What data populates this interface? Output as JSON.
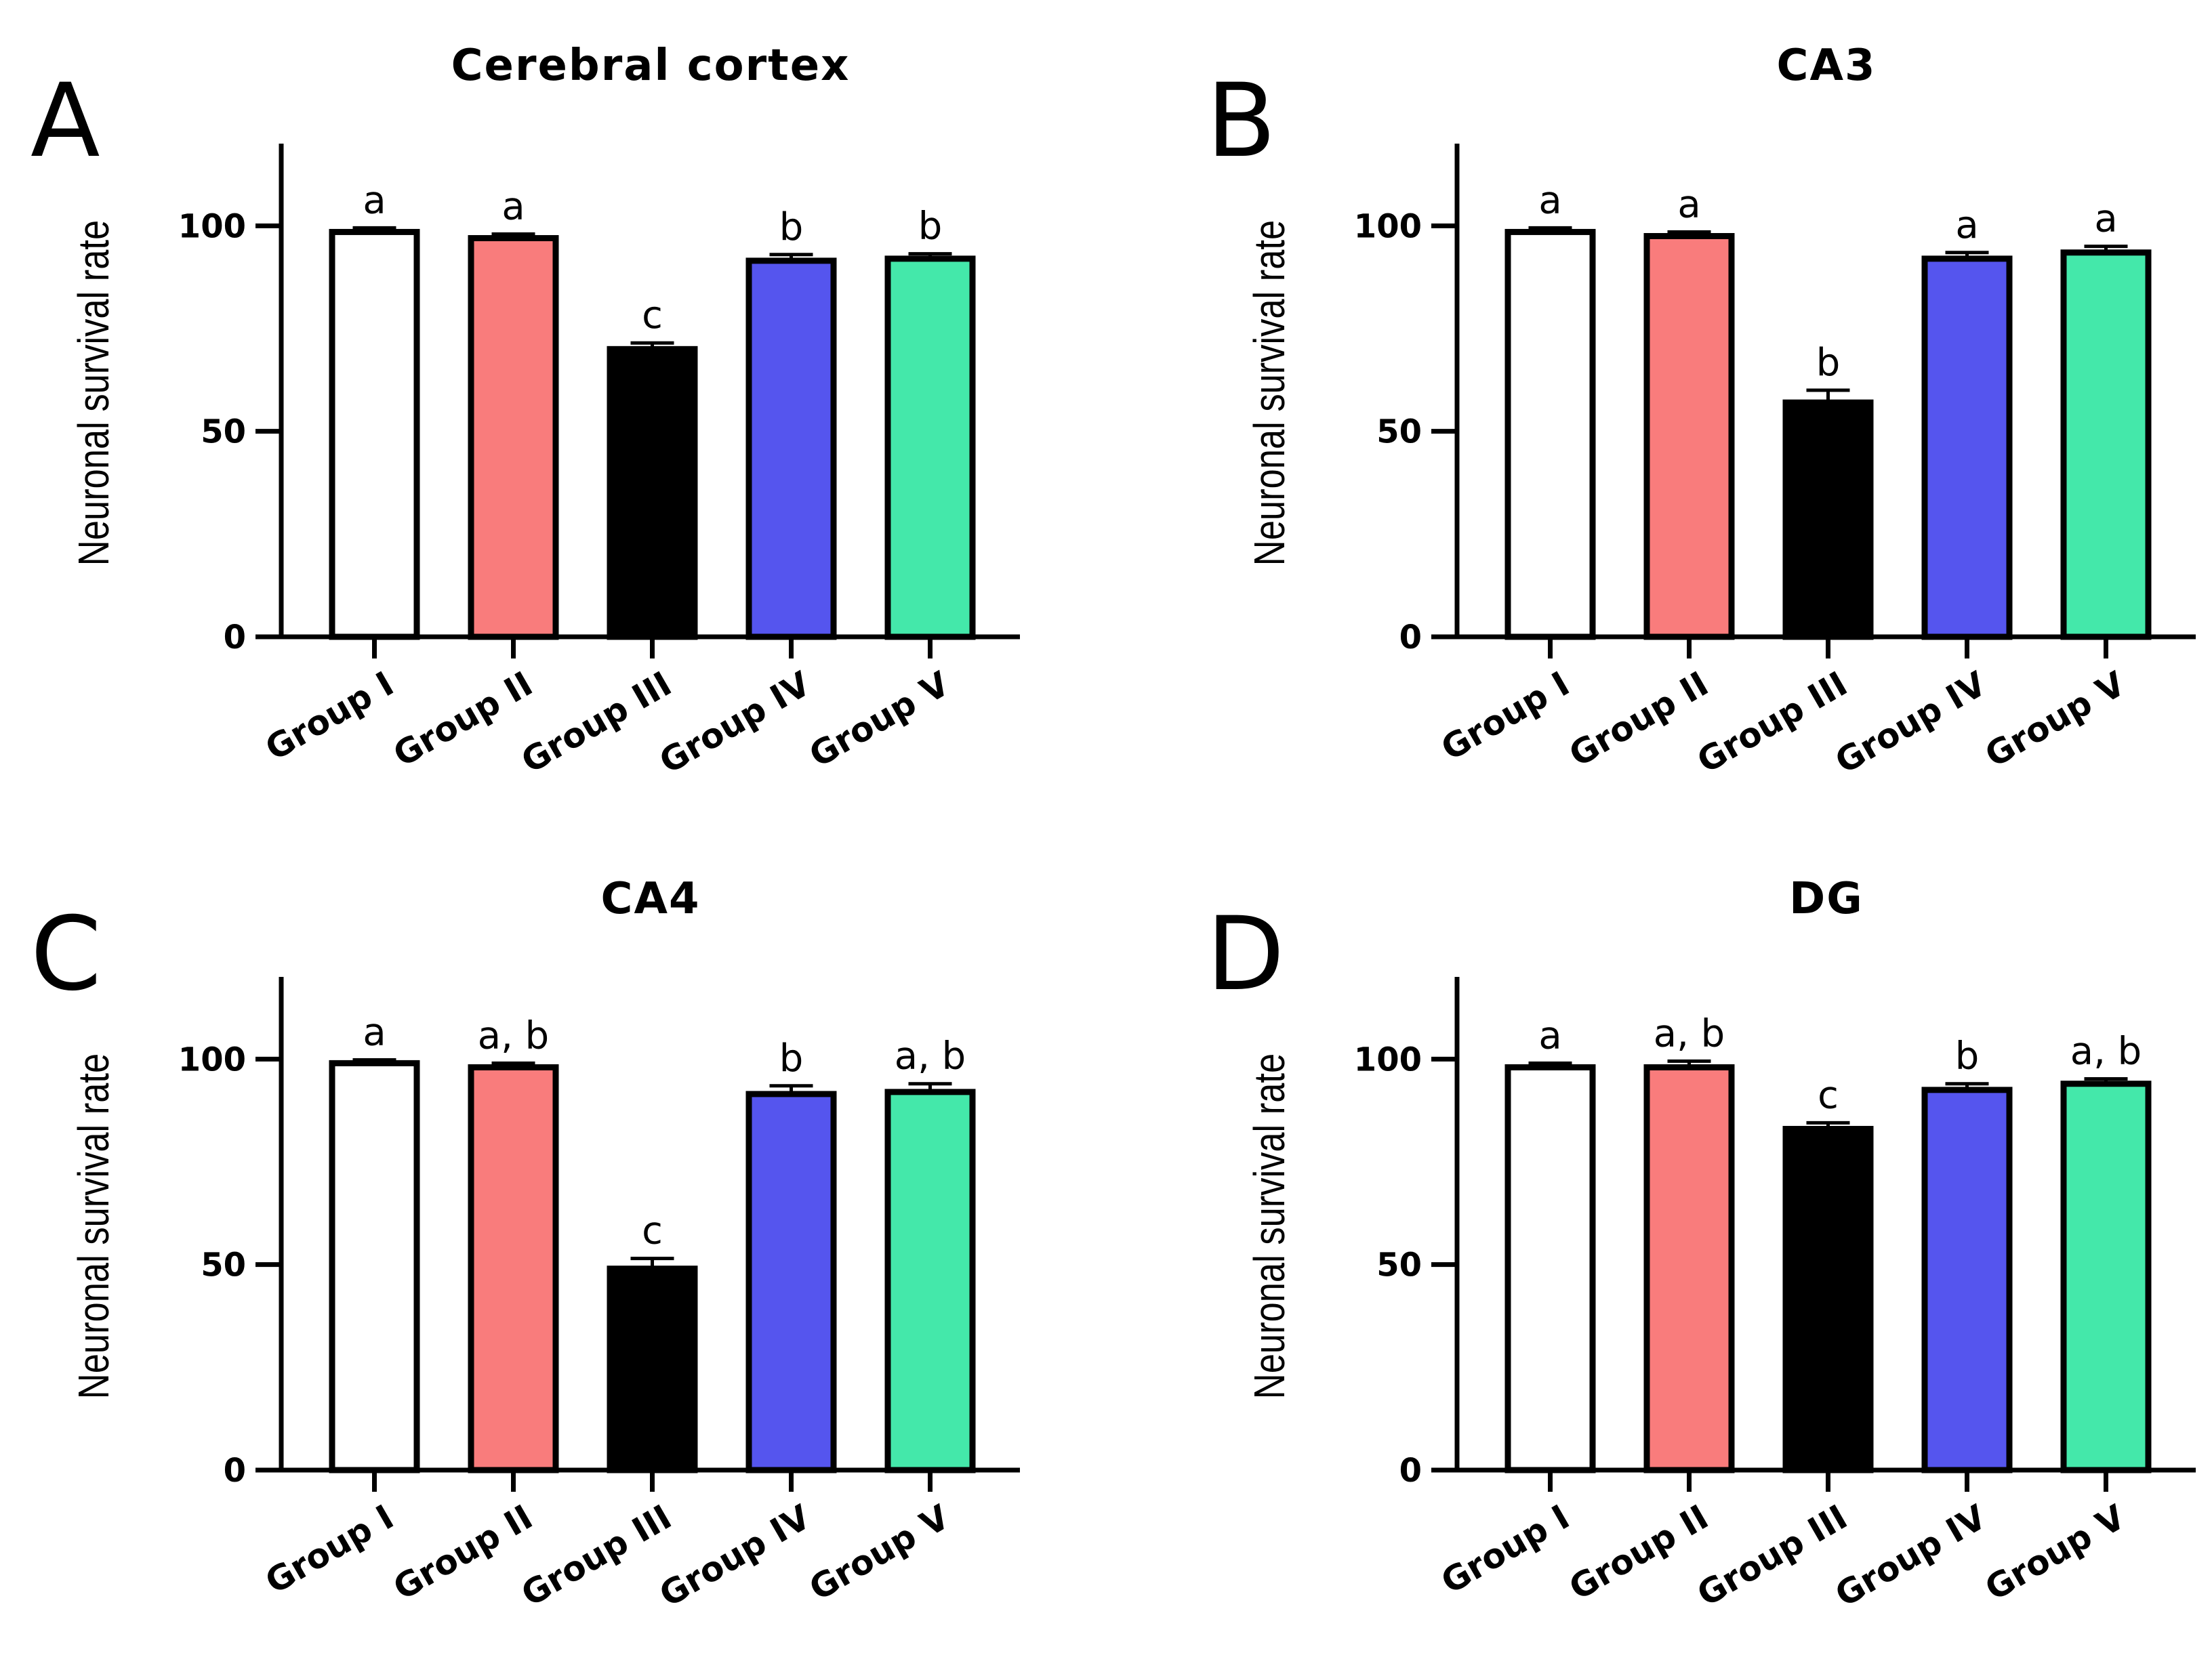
{
  "chart_data": [
    {
      "panel": "A",
      "type": "bar",
      "title": "Cerebral cortex",
      "ylabel": "Neuronal survival rate",
      "xlabel": "",
      "ylim": [
        0,
        120
      ],
      "yticks": [
        0,
        50,
        100
      ],
      "categories": [
        "Group I",
        "Group II",
        "Group III",
        "Group IV",
        "Group V"
      ],
      "values": [
        98.5,
        97,
        70,
        91.5,
        92
      ],
      "errors": [
        1,
        1,
        1.5,
        1.5,
        1.2
      ],
      "annotations": [
        "a",
        "a",
        "c",
        "b",
        "b"
      ],
      "colors": [
        "#ffffff",
        "#f97c7c",
        "#000000",
        "#5555ee",
        "#44e8aa"
      ],
      "grid": false
    },
    {
      "panel": "B",
      "type": "bar",
      "title": "CA3",
      "ylabel": "Neuronal survival rate",
      "xlabel": "",
      "ylim": [
        0,
        120
      ],
      "yticks": [
        0,
        50,
        100
      ],
      "categories": [
        "Group I",
        "Group II",
        "Group III",
        "Group IV",
        "Group V"
      ],
      "values": [
        98.5,
        97.5,
        57,
        92,
        93.5
      ],
      "errors": [
        1,
        1,
        3,
        1.5,
        1.5
      ],
      "annotations": [
        "a",
        "a",
        "b",
        "a",
        "a"
      ],
      "colors": [
        "#ffffff",
        "#f97c7c",
        "#000000",
        "#5555ee",
        "#44e8aa"
      ],
      "grid": false
    },
    {
      "panel": "C",
      "type": "bar",
      "title": "CA4",
      "ylabel": "Neuronal survival rate",
      "xlabel": "",
      "ylim": [
        0,
        120
      ],
      "yticks": [
        0,
        50,
        100
      ],
      "categories": [
        "Group I",
        "Group II",
        "Group III",
        "Group IV",
        "Group V"
      ],
      "values": [
        99,
        98,
        49,
        91.5,
        92
      ],
      "errors": [
        0.8,
        1,
        2.5,
        2,
        2
      ],
      "annotations": [
        "a",
        "a, b",
        "c",
        "b",
        "a, b"
      ],
      "colors": [
        "#ffffff",
        "#f97c7c",
        "#000000",
        "#5555ee",
        "#44e8aa"
      ],
      "grid": false
    },
    {
      "panel": "D",
      "type": "bar",
      "title": "DG",
      "ylabel": "Neuronal survival rate",
      "xlabel": "",
      "ylim": [
        0,
        120
      ],
      "yticks": [
        0,
        50,
        100
      ],
      "categories": [
        "Group I",
        "Group II",
        "Group III",
        "Group IV",
        "Group V"
      ],
      "values": [
        98,
        98,
        83,
        92.5,
        94
      ],
      "errors": [
        1,
        1.5,
        1.5,
        1.5,
        1.2
      ],
      "annotations": [
        "a",
        "a, b",
        "c",
        "b",
        "a, b"
      ],
      "colors": [
        "#ffffff",
        "#f97c7c",
        "#000000",
        "#5555ee",
        "#44e8aa"
      ],
      "grid": false
    }
  ]
}
